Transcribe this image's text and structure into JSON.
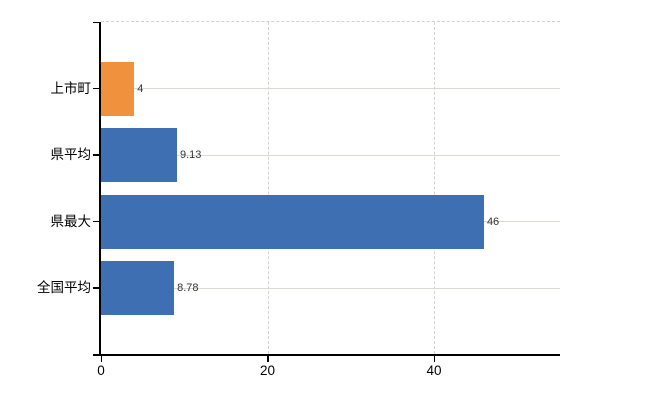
{
  "chart_data": {
    "type": "bar",
    "orientation": "horizontal",
    "title": "",
    "xlabel": "",
    "ylabel": "",
    "categories": [
      "上市町",
      "県平均",
      "県最大",
      "全国平均"
    ],
    "values": [
      4,
      9.13,
      46,
      8.78
    ],
    "value_labels": [
      "4",
      "9.13",
      "46",
      "8.78"
    ],
    "bar_colors": [
      "#f0923d",
      "#3e6fb2",
      "#3e6fb2",
      "#3e6fb2"
    ],
    "highlight_color": "#f0923d",
    "default_bar_color": "#3e6fb2",
    "xticks": [
      0,
      20,
      40
    ],
    "xtick_labels": [
      "0",
      "20",
      "40"
    ],
    "xlim": [
      0,
      55
    ],
    "grid": true,
    "legend": false,
    "background_color": "#ffffff",
    "gridline_color": "#d6dbd4",
    "dashed_line_color": "#d2d2d2",
    "axis_color": "#000000",
    "value_label_color": "#333333",
    "tick_label_color": "#000000"
  }
}
